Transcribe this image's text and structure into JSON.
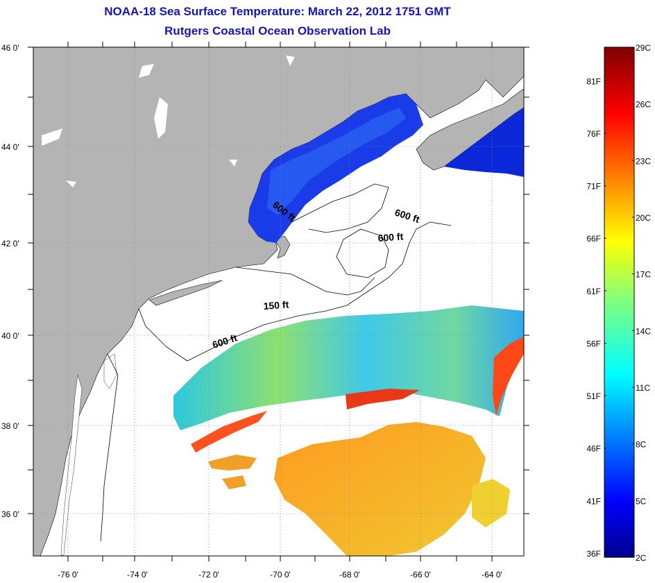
{
  "title": "NOAA-18 Sea Surface Temperature:  March 22, 2012 1751 GMT",
  "subtitle": "Rutgers Coastal Ocean Observation Lab",
  "map": {
    "longitude_ticks": [
      "-76 0'",
      "-74 0'",
      "-72 0'",
      "-70 0'",
      "-68 0'",
      "-66 0'",
      "-64 0'"
    ],
    "latitude_ticks": [
      "46 0'",
      "44 0'",
      "42 0'",
      "40 0'",
      "38 0'",
      "36 0'"
    ],
    "lon_range": [
      -77.0,
      -62.9
    ],
    "lat_range": [
      35.0,
      46.0
    ],
    "contour_labels": [
      "600 ft",
      "600 ft",
      "600 ft",
      "150 ft",
      "600 ft"
    ],
    "colors": {
      "land": "#b4b4b4",
      "water_no_data": "#ffffff",
      "title": "#1515b0"
    }
  },
  "colorbar": {
    "celsius_ticks": [
      "29C",
      "26C",
      "23C",
      "20C",
      "17C",
      "14C",
      "11C",
      "8C",
      "5C",
      "2C"
    ],
    "fahrenheit_ticks": [
      "81F",
      "76F",
      "71F",
      "66F",
      "61F",
      "56F",
      "51F",
      "46F",
      "41F",
      "36F"
    ],
    "colormap": "jet",
    "range_c": [
      2,
      29
    ]
  }
}
